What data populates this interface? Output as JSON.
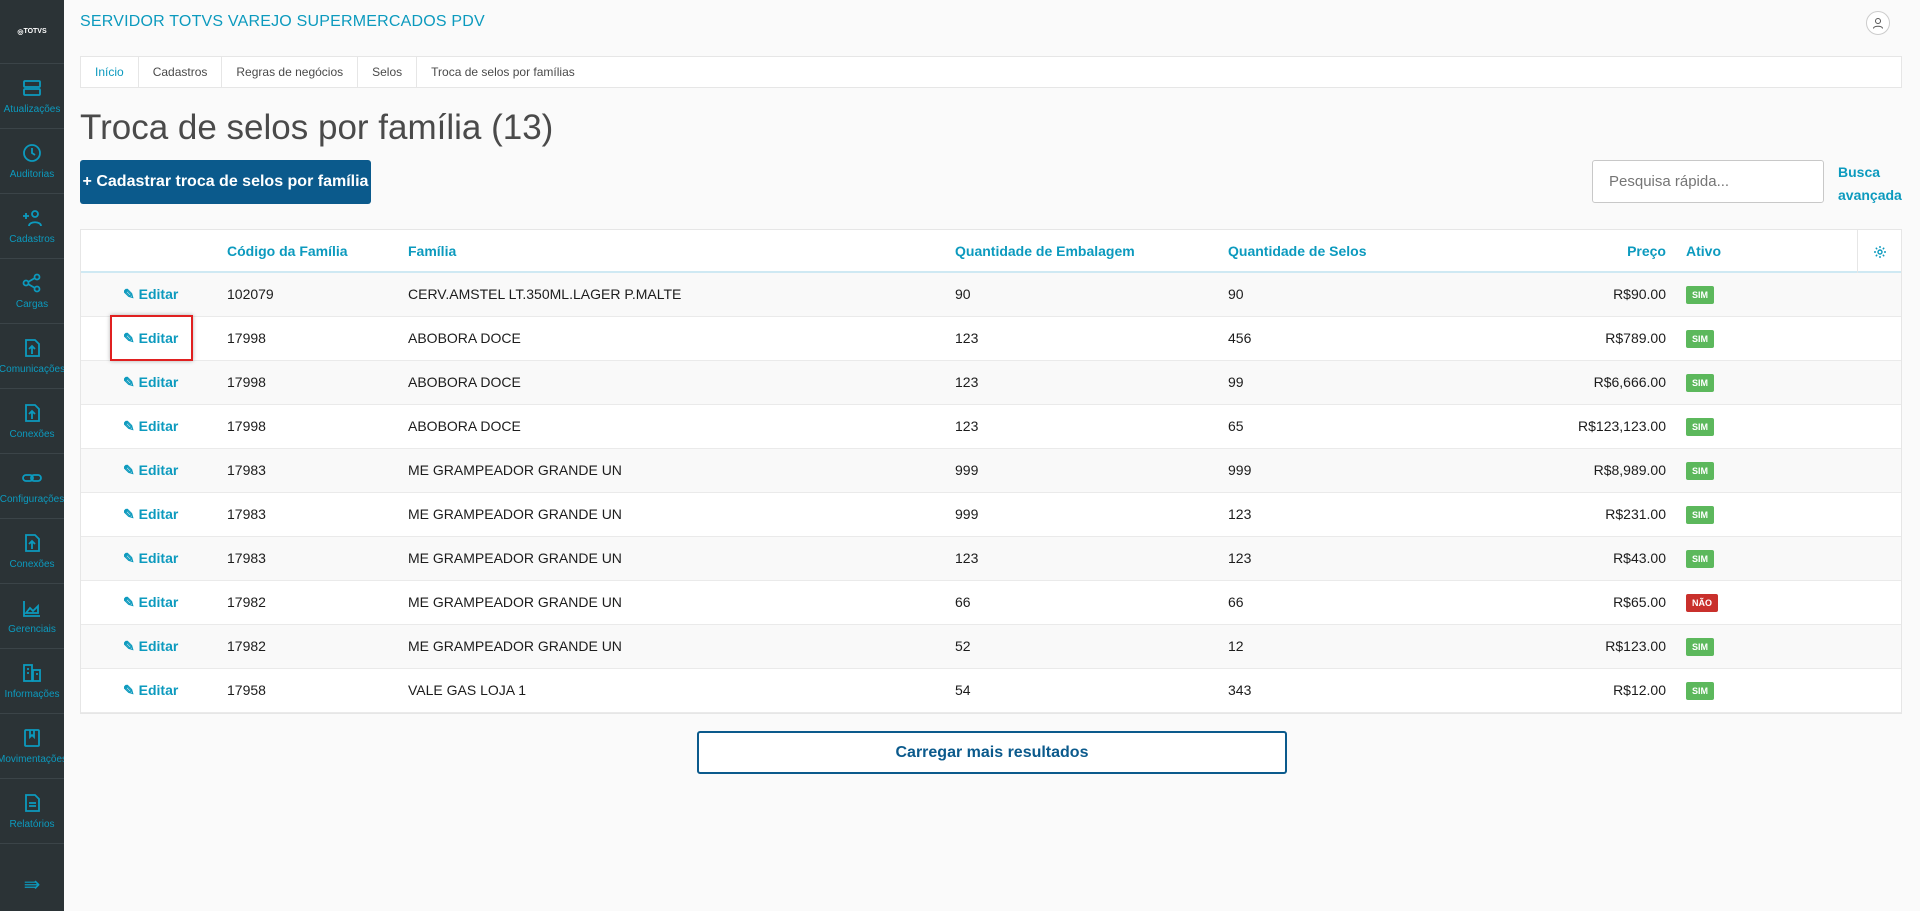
{
  "app": {
    "logo": "TOTVS",
    "title": "SERVIDOR TOTVS VAREJO SUPERMERCADOS PDV"
  },
  "sidebar": {
    "items": [
      {
        "label": "Atualizações",
        "icon": "server-icon"
      },
      {
        "label": "Auditorias",
        "icon": "history-icon"
      },
      {
        "label": "Cadastros",
        "icon": "add-user-icon"
      },
      {
        "label": "Cargas",
        "icon": "share-icon"
      },
      {
        "label": "Comunicações",
        "icon": "upload-file-icon"
      },
      {
        "label": "Conexões",
        "icon": "upload-file-icon"
      },
      {
        "label": "Configurações",
        "icon": "link-icon"
      },
      {
        "label": "Conexões",
        "icon": "upload-file-icon"
      },
      {
        "label": "Gerenciais",
        "icon": "chart-icon"
      },
      {
        "label": "Informações",
        "icon": "building-icon"
      },
      {
        "label": "Movimentações",
        "icon": "book-icon"
      },
      {
        "label": "Relatórios",
        "icon": "document-icon"
      }
    ]
  },
  "breadcrumb": [
    "Início",
    "Cadastros",
    "Regras de negócios",
    "Selos",
    "Troca de selos por famílias"
  ],
  "page": {
    "title": "Troca de selos por família (13)",
    "add_button": "+  Cadastrar troca de selos por família",
    "search_placeholder": "Pesquisa rápida...",
    "advanced_search_1": "Busca",
    "advanced_search_2": "avançada",
    "load_more": "Carregar mais resultados"
  },
  "colors": {
    "accent": "#0c9abe",
    "primary": "#0b5a8c",
    "sim": "#5cb85c",
    "nao": "#c9302c"
  },
  "table": {
    "columns": [
      "Código da Família",
      "Família",
      "Quantidade de Embalagem",
      "Quantidade de Selos",
      "Preço",
      "Ativo"
    ],
    "edit_label": "Editar",
    "rows": [
      {
        "codigo": "102079",
        "familia": "CERV.AMSTEL LT.350ML.LAGER P.MALTE",
        "emb": "90",
        "selos": "90",
        "preco": "R$90.00",
        "ativo": "SIM"
      },
      {
        "codigo": "17998",
        "familia": "ABOBORA DOCE",
        "emb": "123",
        "selos": "456",
        "preco": "R$789.00",
        "ativo": "SIM"
      },
      {
        "codigo": "17998",
        "familia": "ABOBORA DOCE",
        "emb": "123",
        "selos": "99",
        "preco": "R$6,666.00",
        "ativo": "SIM"
      },
      {
        "codigo": "17998",
        "familia": "ABOBORA DOCE",
        "emb": "123",
        "selos": "65",
        "preco": "R$123,123.00",
        "ativo": "SIM"
      },
      {
        "codigo": "17983",
        "familia": "ME GRAMPEADOR GRANDE UN",
        "emb": "999",
        "selos": "999",
        "preco": "R$8,989.00",
        "ativo": "SIM"
      },
      {
        "codigo": "17983",
        "familia": "ME GRAMPEADOR GRANDE UN",
        "emb": "999",
        "selos": "123",
        "preco": "R$231.00",
        "ativo": "SIM"
      },
      {
        "codigo": "17983",
        "familia": "ME GRAMPEADOR GRANDE UN",
        "emb": "123",
        "selos": "123",
        "preco": "R$43.00",
        "ativo": "SIM"
      },
      {
        "codigo": "17982",
        "familia": "ME GRAMPEADOR GRANDE UN",
        "emb": "66",
        "selos": "66",
        "preco": "R$65.00",
        "ativo": "NÃO"
      },
      {
        "codigo": "17982",
        "familia": "ME GRAMPEADOR GRANDE UN",
        "emb": "52",
        "selos": "12",
        "preco": "R$123.00",
        "ativo": "SIM"
      },
      {
        "codigo": "17958",
        "familia": "VALE GAS LOJA 1",
        "emb": "54",
        "selos": "343",
        "preco": "R$12.00",
        "ativo": "SIM"
      }
    ]
  }
}
